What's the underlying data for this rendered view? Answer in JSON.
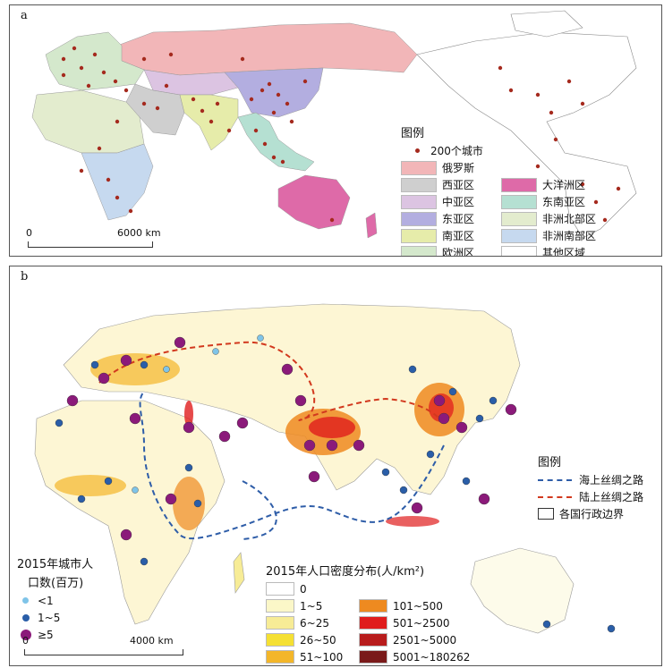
{
  "panel_a": {
    "label": "a",
    "legend": {
      "title": "图例",
      "city_marker": {
        "label": "200个城市",
        "color": "#a52a1e"
      },
      "regions": [
        {
          "label": "俄罗斯",
          "color": "#f2b6b8"
        },
        {
          "label": "西亚区",
          "color": "#cfcfcf"
        },
        {
          "label": "大洋洲区",
          "color": "#de6aa8"
        },
        {
          "label": "中亚区",
          "color": "#dcc4e2"
        },
        {
          "label": "东南亚区",
          "color": "#b5e0d2"
        },
        {
          "label": "东亚区",
          "color": "#b3aee0"
        },
        {
          "label": "非洲北部区",
          "color": "#e3ecce"
        },
        {
          "label": "南亚区",
          "color": "#e6ecaa"
        },
        {
          "label": "非洲南部区",
          "color": "#c6d9ef"
        },
        {
          "label": "欧洲区",
          "color": "#d4e8cc"
        },
        {
          "label": "其他区域",
          "color": "#ffffff"
        }
      ]
    },
    "scale": {
      "start": "0",
      "end": "6000 km"
    }
  },
  "panel_b": {
    "label": "b",
    "route_legend": {
      "title": "图例",
      "items": [
        {
          "label": "海上丝绸之路",
          "color": "#2e5da8"
        },
        {
          "label": "陆上丝绸之路",
          "color": "#d2391e"
        },
        {
          "label": "各国行政边界",
          "color": "#333333"
        }
      ]
    },
    "city_legend": {
      "title_line1": "2015年城市人",
      "title_line2": "口数(百万)",
      "items": [
        {
          "label": "<1",
          "color": "#7fc4e8",
          "size": 7
        },
        {
          "label": "1~5",
          "color": "#2a5ea8",
          "size": 8
        },
        {
          "label": "≥5",
          "color": "#8b1a7a",
          "size": 12
        }
      ]
    },
    "density_legend": {
      "title": "2015年人口密度分布(人/km²)",
      "classes": [
        {
          "label": "0",
          "color": "#ffffff"
        },
        {
          "label": "1~5",
          "color": "#fbf7c8"
        },
        {
          "label": "101~500",
          "color": "#ee8a20"
        },
        {
          "label": "6~25",
          "color": "#f7ec96"
        },
        {
          "label": "501~2500",
          "color": "#e01d1d"
        },
        {
          "label": "26~50",
          "color": "#f5e033"
        },
        {
          "label": "2501~5000",
          "color": "#b81c1c"
        },
        {
          "label": "51~100",
          "color": "#f3b62a"
        },
        {
          "label": "5001~180262",
          "color": "#7a1a1a"
        }
      ]
    },
    "scale": {
      "start": "0",
      "end": "4000 km"
    }
  }
}
